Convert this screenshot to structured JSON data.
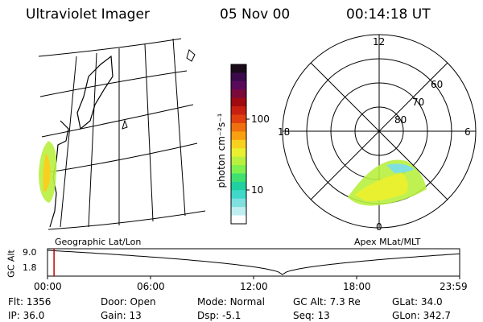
{
  "header": {
    "instrument": "Ultraviolet Imager",
    "date": "05 Nov 00",
    "time": "00:14:18 UT"
  },
  "colorbar": {
    "unit_label": "photon cm⁻²s⁻¹",
    "ticks": [
      "100",
      "10"
    ],
    "colors": [
      "#1a0a1a",
      "#3a0a4a",
      "#5a0a5a",
      "#7a0a3a",
      "#a00a10",
      "#c82010",
      "#e04010",
      "#f07010",
      "#f8a010",
      "#f8d020",
      "#e8f030",
      "#b8f040",
      "#80f050",
      "#40e070",
      "#20d0a0",
      "#40d8c8",
      "#80e0e0",
      "#c0eef0",
      "#ffffff"
    ]
  },
  "panels": {
    "left_label": "Geographic Lat/Lon",
    "right_label": "Apex MLat/MLT"
  },
  "polar": {
    "mlt": [
      "12",
      "18",
      "6",
      "0"
    ],
    "mlat": [
      "60",
      "70",
      "80"
    ]
  },
  "timeline": {
    "axis_label": "GC Alt",
    "ymax": "9.0",
    "ymin": "1.8",
    "ticks": [
      "00:00",
      "06:00",
      "12:00",
      "18:00",
      "23:59"
    ],
    "marker_time_hours": 0.24
  },
  "info": [
    [
      {
        "k": "Flt:",
        "v": "1356"
      },
      {
        "k": "Door:",
        "v": "Open"
      },
      {
        "k": "Mode:",
        "v": "Normal"
      },
      {
        "k": "GC Alt:",
        "v": "7.3 Re"
      },
      {
        "k": "GLat:",
        "v": "34.0"
      }
    ],
    [
      {
        "k": "IP:",
        "v": "36.0"
      },
      {
        "k": "Gain:",
        "v": "13"
      },
      {
        "k": "Dsp:",
        "v": "-5.1"
      },
      {
        "k": "Seq:",
        "v": "13"
      },
      {
        "k": "GLon:",
        "v": "342.7"
      }
    ]
  ]
}
